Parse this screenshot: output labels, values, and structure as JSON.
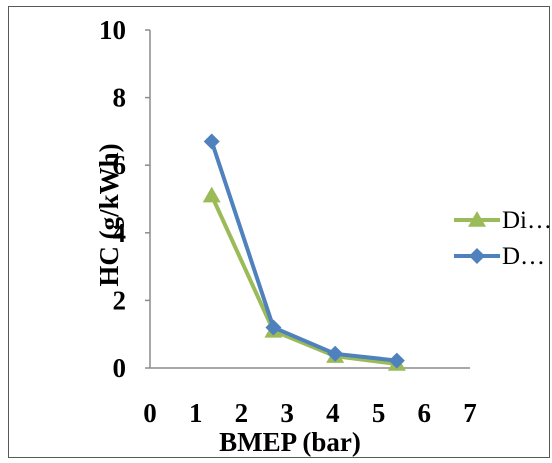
{
  "chart_data": {
    "type": "line",
    "xlabel": "BMEP (bar)",
    "ylabel": "HC (g/kWh)",
    "xlim": [
      0,
      7
    ],
    "ylim": [
      0,
      10
    ],
    "x_ticks": [
      "0",
      "1",
      "2",
      "3",
      "4",
      "5",
      "6",
      "7"
    ],
    "y_ticks": [
      "0",
      "2",
      "4",
      "6",
      "8",
      "10"
    ],
    "grid": false,
    "legend_position": "right",
    "series": [
      {
        "name": "Di…",
        "color": "#9bbb59",
        "marker": "triangle",
        "x": [
          1.35,
          2.7,
          4.05,
          5.4
        ],
        "y": [
          5.1,
          1.1,
          0.35,
          0.12
        ]
      },
      {
        "name": "D…",
        "color": "#4f81bd",
        "marker": "diamond",
        "x": [
          1.35,
          2.7,
          4.05,
          5.4
        ],
        "y": [
          6.7,
          1.2,
          0.42,
          0.22
        ]
      }
    ]
  }
}
